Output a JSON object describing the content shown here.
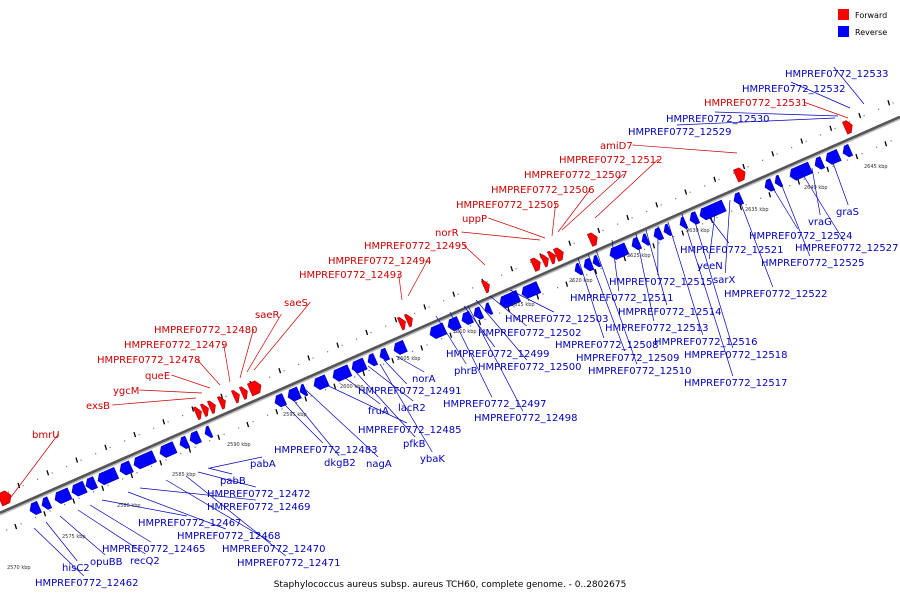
{
  "caption": "Staphylococcus aureus subsp. aureus TCH60, complete genome. - 0..2802675",
  "legend": [
    {
      "label": "Forward",
      "color": "#ff0000"
    },
    {
      "label": "Reverse",
      "color": "#0000ff"
    }
  ],
  "colors": {
    "forward": "#ff0000",
    "reverse": "#0000ff",
    "forward_text": "#cc0000",
    "reverse_text": "#0000bb",
    "backbone": "#888888",
    "tick": "#000000"
  },
  "kbp_ticks": [
    "2570 kbp",
    "2575 kbp",
    "2580 kbp",
    "2585 kbp",
    "2590 kbp",
    "2595 kbp",
    "2600 kbp",
    "2605 kbp",
    "2610 kbp",
    "2615 kbp",
    "2620 kbp",
    "2625 kbp",
    "2630 kbp",
    "2635 kbp",
    "2640 kbp",
    "2645 kbp"
  ],
  "forward_labels": [
    "bmrU",
    "exsB",
    "ygcM",
    "queE",
    "HMPREF0772_12478",
    "HMPREF0772_12479",
    "HMPREF0772_12480",
    "saeR",
    "saeS",
    "HMPREF0772_12493",
    "HMPREF0772_12494",
    "HMPREF0772_12495",
    "norR",
    "uppP",
    "HMPREF0772_12505",
    "HMPREF0772_12506",
    "HMPREF0772_12507",
    "HMPREF0772_12512",
    "amiD7",
    "HMPREF0772_12531"
  ],
  "reverse_labels": [
    "HMPREF0772_12462",
    "hisC2",
    "opuBB",
    "recQ2",
    "HMPREF0772_12465",
    "HMPREF0772_12467",
    "HMPREF0772_12468",
    "HMPREF0772_12469",
    "HMPREF0772_12470",
    "HMPREF0772_12471",
    "HMPREF0772_12472",
    "pabB",
    "pabA",
    "dkgB2",
    "nagA",
    "HMPREF0772_12483",
    "HMPREF0772_12485",
    "fruA",
    "pfkB",
    "lacR2",
    "ybaK",
    "norA",
    "HMPREF0772_12491",
    "phrB",
    "HMPREF0772_12497",
    "HMPREF0772_12498",
    "HMPREF0772_12499",
    "HMPREF0772_12500",
    "HMPREF0772_12502",
    "HMPREF0772_12503",
    "HMPREF0772_12508",
    "HMPREF0772_12509",
    "HMPREF0772_12510",
    "HMPREF0772_12511",
    "HMPREF0772_12513",
    "HMPREF0772_12514",
    "HMPREF0772_12515",
    "HMPREF0772_12516",
    "HMPREF0772_12517",
    "HMPREF0772_12518",
    "HMPREF0772_12521",
    "HMPREF0772_12522",
    "yeeN",
    "sarX",
    "HMPREF0772_12524",
    "HMPREF0772_12525",
    "HMPREF0772_12527",
    "vraG",
    "graS",
    "HMPREF0772_12529",
    "HMPREF0772_12530",
    "HMPREF0772_12532",
    "HMPREF0772_12533"
  ]
}
